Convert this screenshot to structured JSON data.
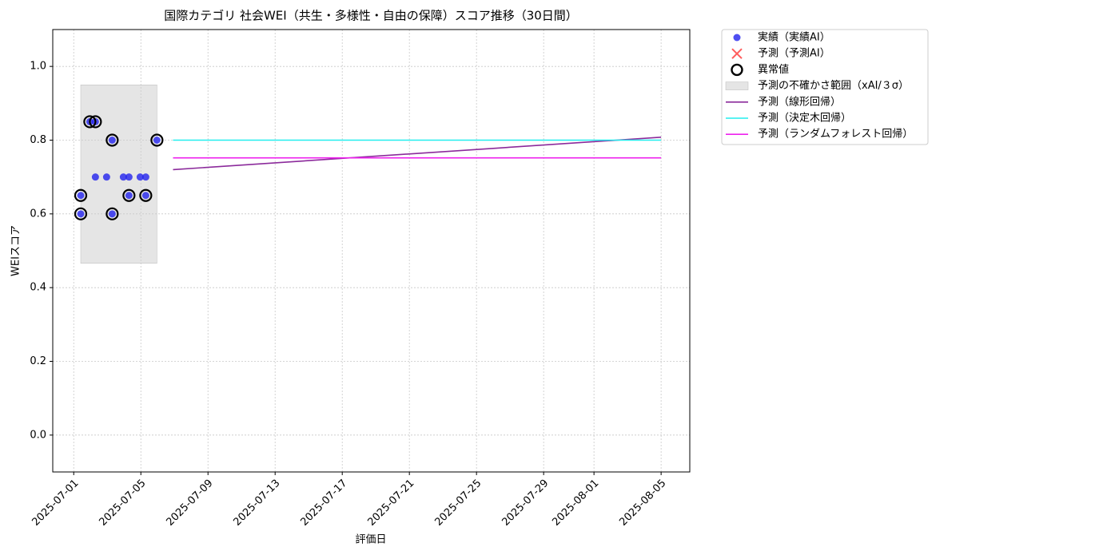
{
  "chart_data": {
    "type": "scatter",
    "title": "国際カテゴリ 社会WEI（共生・多様性・自由の保障）スコア推移（30日間）",
    "x_label": "評価日",
    "y_label": "WEIスコア",
    "xlim": [
      "2025-06-29T18:00Z",
      "2025-08-06T17:00Z"
    ],
    "xticks": [
      "2025-07-01",
      "2025-07-05",
      "2025-07-09",
      "2025-07-13",
      "2025-07-17",
      "2025-07-21",
      "2025-07-25",
      "2025-07-29",
      "2025-08-01",
      "2025-08-05"
    ],
    "ylim": [
      -0.1,
      1.1
    ],
    "yticks": [
      {
        "value": 0,
        "label": "0.0"
      },
      {
        "value": 0.2,
        "label": "0.2"
      },
      {
        "value": 0.4,
        "label": "0.4"
      },
      {
        "value": 0.6,
        "label": "0.6"
      },
      {
        "value": 0.8,
        "label": "0.8"
      },
      {
        "value": 1,
        "label": "1.0"
      }
    ],
    "grid": true,
    "legend": "outside upper right",
    "series": [
      {
        "name": "実績（実績AI）",
        "kind": "points",
        "color": "#2222ee",
        "x": [
          "2025-07-01T10:00Z",
          "2025-07-01T10:00Z",
          "2025-07-01T23:00Z",
          "2025-07-02T07:00Z",
          "2025-07-02T07:00Z",
          "2025-07-02T23:00Z",
          "2025-07-03T07:00Z",
          "2025-07-03T07:00Z",
          "2025-07-03T23:00Z",
          "2025-07-04T07:00Z",
          "2025-07-04T07:00Z",
          "2025-07-04T23:00Z",
          "2025-07-05T07:00Z",
          "2025-07-05T07:00Z",
          "2025-07-05T23:00Z"
        ],
        "values": [
          0.65,
          0.6,
          0.85,
          0.85,
          0.7,
          0.7,
          0.8,
          0.6,
          0.7,
          0.7,
          0.65,
          0.7,
          0.7,
          0.65,
          0.8
        ]
      },
      {
        "name": "予測（予測AI）",
        "kind": "cross",
        "color": "#ff3333",
        "x": [],
        "values": []
      },
      {
        "name": "異常値",
        "kind": "rings",
        "color": "#000000",
        "x": [
          "2025-07-01T10:00Z",
          "2025-07-01T10:00Z",
          "2025-07-01T23:00Z",
          "2025-07-02T07:00Z",
          "2025-07-03T07:00Z",
          "2025-07-03T07:00Z",
          "2025-07-04T07:00Z",
          "2025-07-05T07:00Z",
          "2025-07-05T23:00Z"
        ],
        "values": [
          0.65,
          0.6,
          0.85,
          0.85,
          0.8,
          0.6,
          0.65,
          0.65,
          0.8
        ]
      },
      {
        "name": "予測の不確かさ範囲（xAI/３σ）",
        "kind": "band",
        "color": "#cccccc",
        "x": [
          "2025-07-01T10:00Z",
          "2025-07-05T23:00Z"
        ],
        "lower": [
          0.466,
          0.466
        ],
        "values": [
          0.95,
          0.95
        ]
      },
      {
        "name": "予測（線形回帰）",
        "kind": "line",
        "color": "#8b2a9b",
        "x": [
          "2025-07-06T22:00Z",
          "2025-08-05T00:00Z"
        ],
        "values": [
          0.72,
          0.808
        ]
      },
      {
        "name": "予測（決定木回帰）",
        "kind": "line",
        "color": "#22eeee",
        "x": [
          "2025-07-06T22:00Z",
          "2025-08-05T00:00Z"
        ],
        "values": [
          0.8,
          0.8
        ]
      },
      {
        "name": "予測（ランダムフォレスト回帰）",
        "kind": "line",
        "color": "#ee22ee",
        "x": [
          "2025-07-06T22:00Z",
          "2025-08-05T00:00Z"
        ],
        "values": [
          0.752,
          0.752
        ]
      }
    ]
  }
}
